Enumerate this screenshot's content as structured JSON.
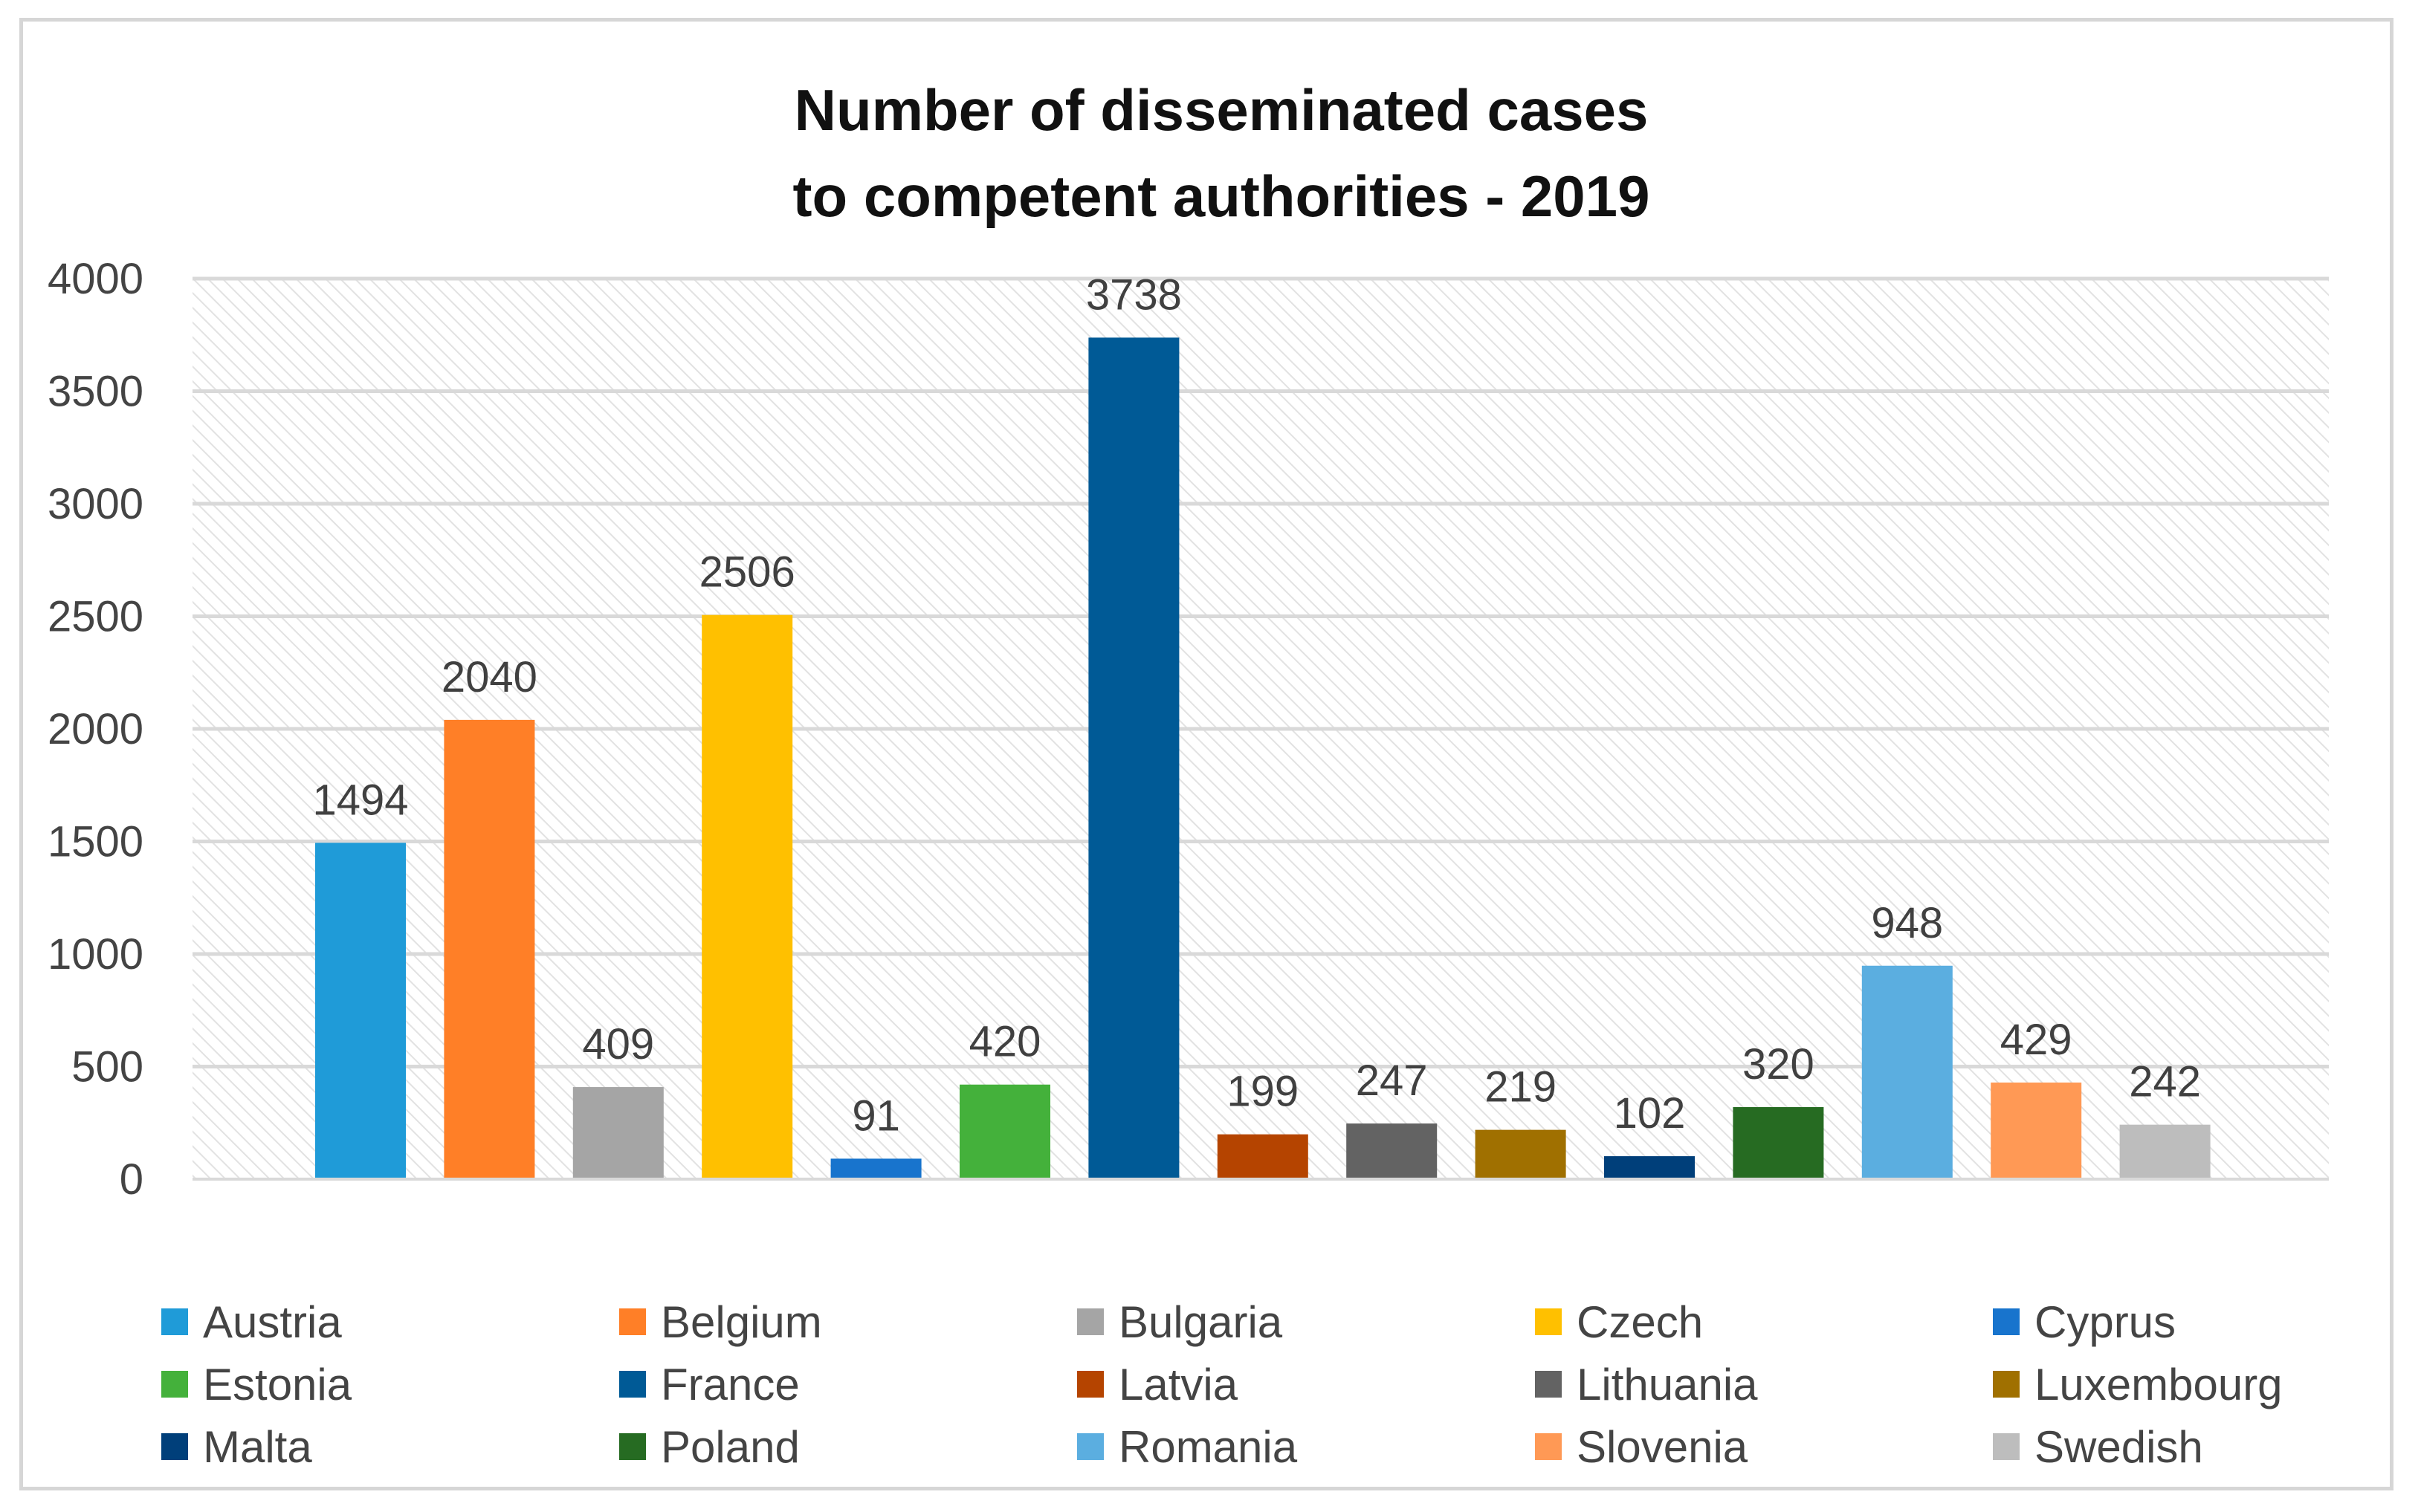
{
  "chart_data": {
    "type": "bar",
    "title": [
      "Number of disseminated cases",
      "to competent authorities - 2019"
    ],
    "xlabel": "",
    "ylabel": "",
    "ylim": [
      0,
      4000
    ],
    "yticks": [
      0,
      500,
      1000,
      1500,
      2000,
      2500,
      3000,
      3500,
      4000
    ],
    "grid": true,
    "legend_position": "bottom",
    "categories": [
      "Austria",
      "Belgium",
      "Bulgaria",
      "Czech",
      "Cyprus",
      "Estonia",
      "France",
      "Latvia",
      "Lithuania",
      "Luxembourg",
      "Malta",
      "Poland",
      "Romania",
      "Slovenia",
      "Swedish"
    ],
    "values": [
      1494,
      2040,
      409,
      2506,
      91,
      420,
      3738,
      199,
      247,
      219,
      102,
      320,
      948,
      429,
      242
    ],
    "colors": [
      "#1F9BD8",
      "#FF7F27",
      "#A5A5A5",
      "#FFC000",
      "#1874CD",
      "#44B13B",
      "#005A96",
      "#B54400",
      "#636363",
      "#A07000",
      "#003F7A",
      "#266B22",
      "#5BAEE0",
      "#FF9955",
      "#BDBDBD"
    ]
  }
}
